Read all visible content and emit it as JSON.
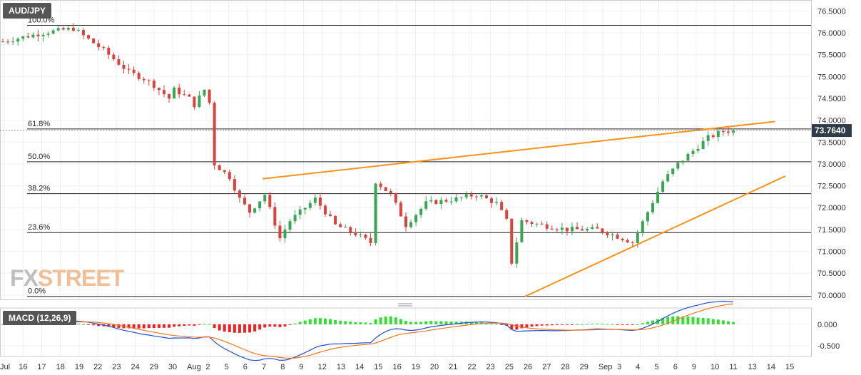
{
  "symbol": "AUD/JPY",
  "watermark": {
    "part1": "FX",
    "part2": "STREET"
  },
  "colors": {
    "up": "#3aa655",
    "down": "#d9423d",
    "trend": "#f7931a",
    "macd": "#1f4fd6",
    "signal": "#f07820",
    "hist_pos": "#33dd33",
    "hist_neg": "#ee2222",
    "price_badge": "#2f3b4a"
  },
  "price_axis": {
    "ticks": [
      "76.5000",
      "76.0000",
      "75.5000",
      "75.0000",
      "74.5000",
      "74.0000",
      "73.5000",
      "73.0000",
      "72.5000",
      "72.0000",
      "71.5000",
      "71.0000",
      "70.5000",
      "70.0000"
    ],
    "min": 69.9,
    "max": 76.75
  },
  "current_price": "73.7640",
  "fib_levels": [
    {
      "label": "100.0%",
      "price": 76.17
    },
    {
      "label": "61.8%",
      "price": 73.8
    },
    {
      "label": "50.0%",
      "price": 73.05
    },
    {
      "label": "38.2%",
      "price": 72.32
    },
    {
      "label": "23.6%",
      "price": 71.43
    },
    {
      "label": "0.0%",
      "price": 69.97
    }
  ],
  "macd": {
    "label": "MACD (12,26,9)",
    "ticks": [
      "0.000",
      "-0.500"
    ],
    "min": -0.75,
    "max": 0.38
  },
  "x_axis": {
    "labels": [
      "Jul",
      "16",
      "17",
      "18",
      "19",
      "22",
      "23",
      "24",
      "29",
      "30",
      "Aug",
      "2",
      "5",
      "6",
      "7",
      "8",
      "9",
      "12",
      "13",
      "14",
      "15",
      "16",
      "19",
      "20",
      "21",
      "22",
      "23",
      "25",
      "26",
      "27",
      "28",
      "29",
      "Sep",
      "3",
      "4",
      "5",
      "6",
      "9",
      "10",
      "11",
      "13",
      "14",
      "15"
    ]
  },
  "chart_data": {
    "type": "candlestick",
    "title": "AUD/JPY",
    "ylim": [
      69.9,
      76.75
    ],
    "trendlines": [
      {
        "name": "upper",
        "from": [
          0.305,
          72.66
        ],
        "to": [
          0.9,
          73.97
        ]
      },
      {
        "name": "lower",
        "from": [
          0.61,
          69.97
        ],
        "to": [
          0.912,
          72.72
        ]
      }
    ],
    "anchors": [
      [
        0,
        75.8
      ],
      [
        8,
        76.0
      ],
      [
        14,
        76.1
      ],
      [
        20,
        75.6
      ],
      [
        25,
        75.1
      ],
      [
        28,
        74.95
      ],
      [
        30,
        74.8
      ],
      [
        33,
        74.5
      ],
      [
        34,
        74.7
      ],
      [
        37,
        74.5
      ],
      [
        38,
        74.35
      ],
      [
        40,
        74.7
      ],
      [
        41,
        74.4
      ],
      [
        42,
        73.0
      ],
      [
        45,
        72.7
      ],
      [
        47,
        72.2
      ],
      [
        49,
        71.9
      ],
      [
        52,
        72.3
      ],
      [
        55,
        71.3
      ],
      [
        57,
        71.7
      ],
      [
        62,
        72.2
      ],
      [
        66,
        71.6
      ],
      [
        70,
        71.4
      ],
      [
        73,
        71.2
      ],
      [
        74,
        72.6
      ],
      [
        77,
        72.3
      ],
      [
        80,
        71.6
      ],
      [
        84,
        72.1
      ],
      [
        90,
        72.2
      ],
      [
        94,
        72.3
      ],
      [
        98,
        72.1
      ],
      [
        100,
        71.7
      ],
      [
        101,
        70.75
      ],
      [
        103,
        71.7
      ],
      [
        107,
        71.6
      ],
      [
        112,
        71.5
      ],
      [
        118,
        71.5
      ],
      [
        123,
        71.3
      ],
      [
        125,
        71.2
      ],
      [
        128,
        71.9
      ],
      [
        131,
        72.6
      ],
      [
        134,
        73.0
      ],
      [
        137,
        73.3
      ],
      [
        140,
        73.6
      ],
      [
        143,
        73.75
      ],
      [
        145,
        73.76
      ]
    ],
    "candle_count": 146
  }
}
